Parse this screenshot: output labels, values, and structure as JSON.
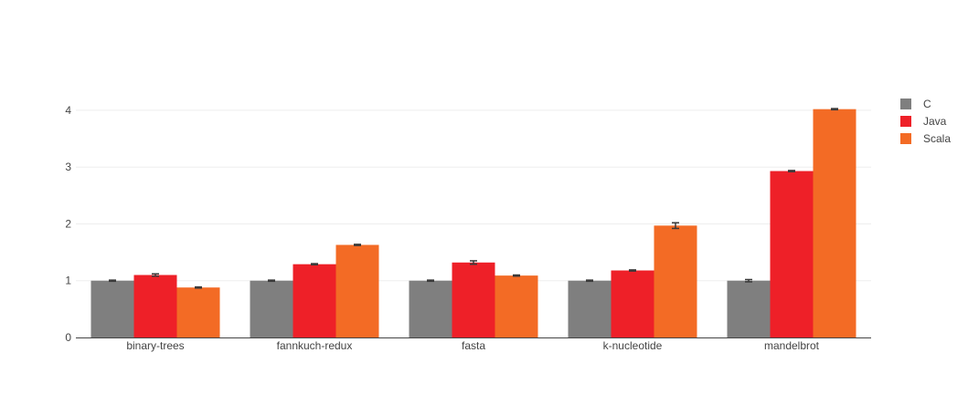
{
  "chart_data": {
    "type": "bar",
    "categories": [
      "binary-trees",
      "fannkuch-redux",
      "fasta",
      "k-nucleotide",
      "mandelbrot"
    ],
    "series": [
      {
        "name": "C",
        "color": "#7f7f7f",
        "values": [
          1.0,
          1.0,
          1.0,
          1.0,
          1.0
        ],
        "errors": [
          0.01,
          0.01,
          0.01,
          0.01,
          0.02
        ]
      },
      {
        "name": "Java",
        "color": "#ee2028",
        "values": [
          1.1,
          1.29,
          1.32,
          1.18,
          2.93
        ],
        "errors": [
          0.02,
          0.01,
          0.03,
          0.01,
          0.01
        ]
      },
      {
        "name": "Scala",
        "color": "#f36b25",
        "values": [
          0.88,
          1.63,
          1.09,
          1.97,
          4.02
        ],
        "errors": [
          0.01,
          0.01,
          0.01,
          0.05,
          0.01
        ]
      }
    ],
    "yticks": [
      0,
      1,
      2,
      3,
      4
    ],
    "ylim": [
      0,
      4.0
    ],
    "grid": true,
    "legend_position": "top-right"
  }
}
